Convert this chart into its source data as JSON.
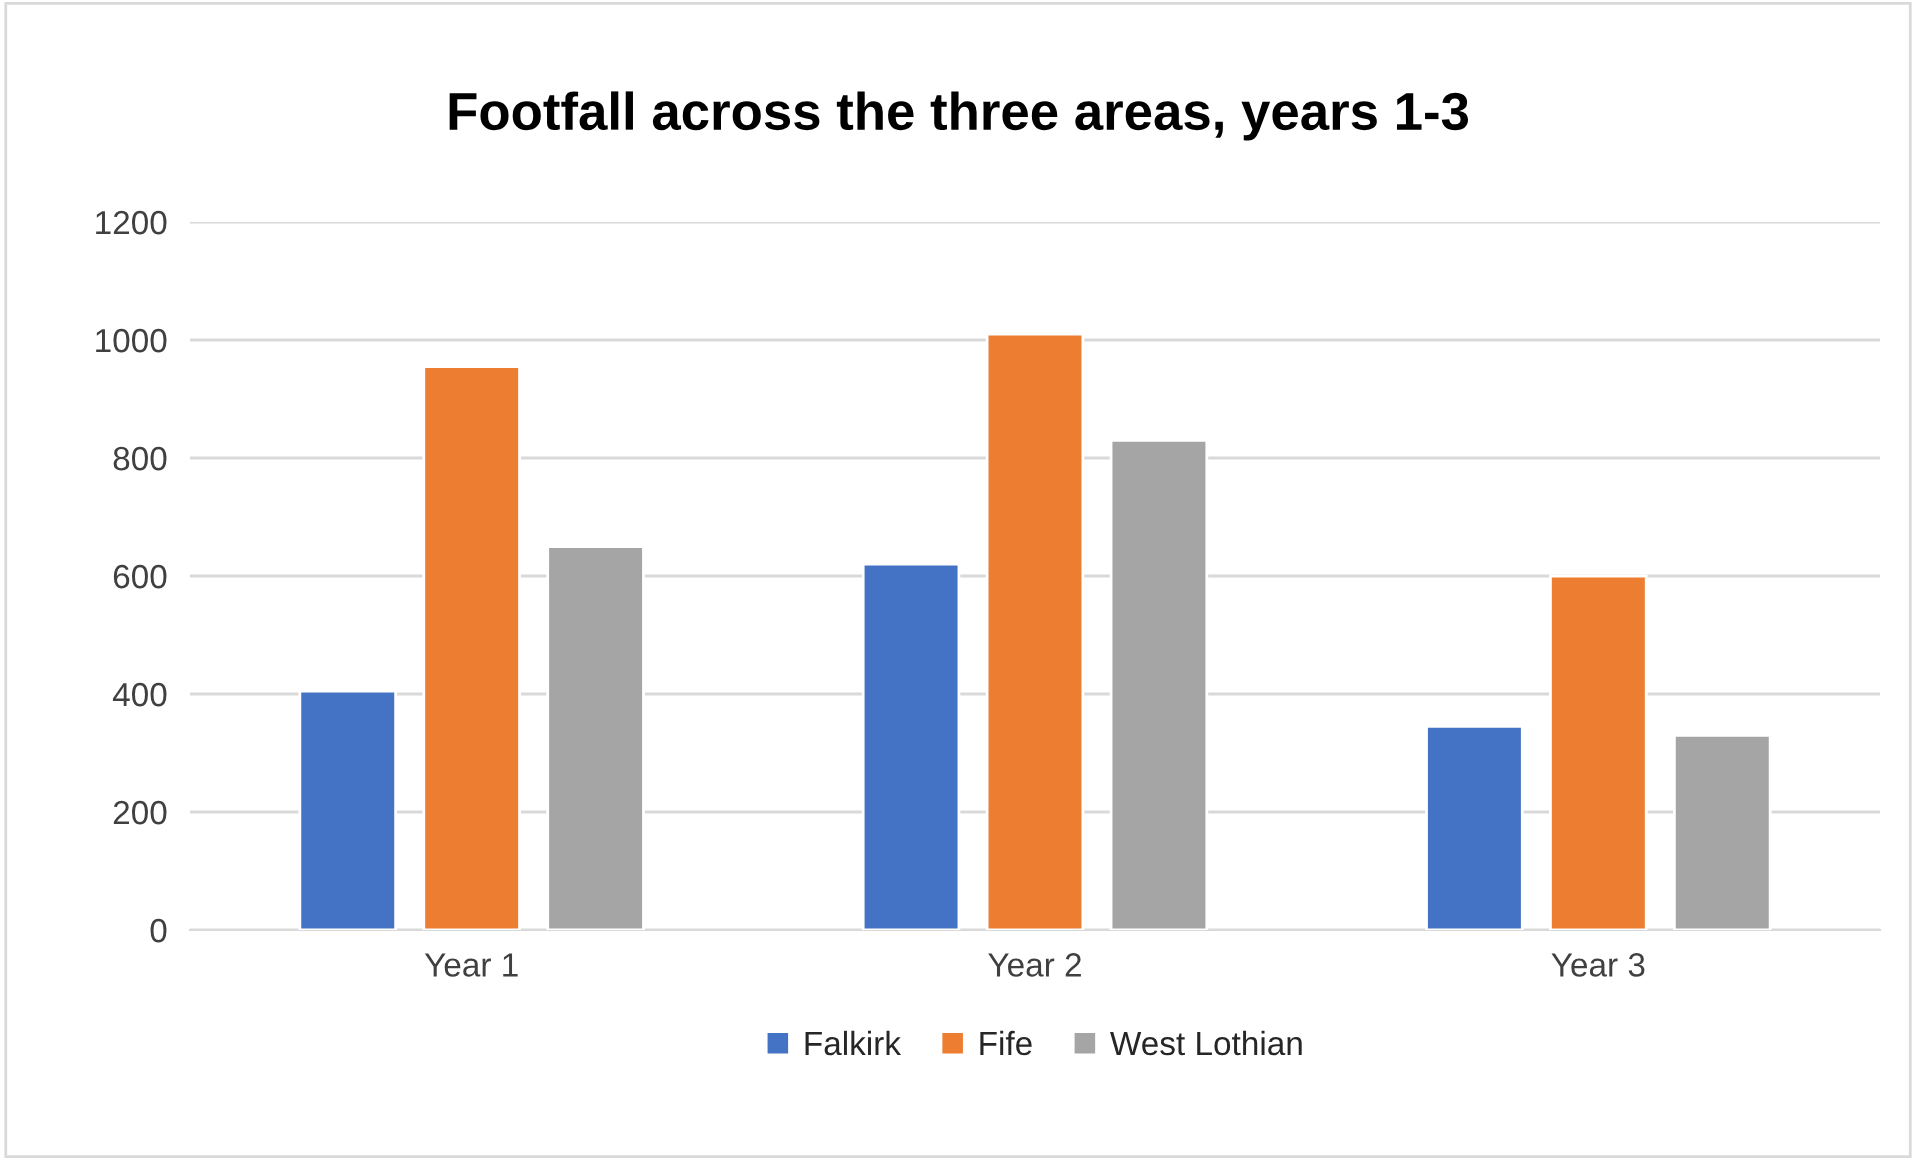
{
  "chart_data": {
    "type": "bar",
    "title": "Footfall across the three areas, years 1-3",
    "categories": [
      "Year 1",
      "Year 2",
      "Year 3"
    ],
    "series": [
      {
        "name": "Falkirk",
        "color": "#4472c4",
        "values": [
          405,
          620,
          345
        ]
      },
      {
        "name": "Fife",
        "color": "#ed7d31",
        "values": [
          955,
          1010,
          600
        ]
      },
      {
        "name": "West Lothian",
        "color": "#a5a5a5",
        "values": [
          650,
          830,
          330
        ]
      }
    ],
    "ylim": [
      0,
      1200
    ],
    "yticks": [
      0,
      200,
      400,
      600,
      800,
      1000,
      1200
    ],
    "grid": "y",
    "legend": "bottom"
  }
}
